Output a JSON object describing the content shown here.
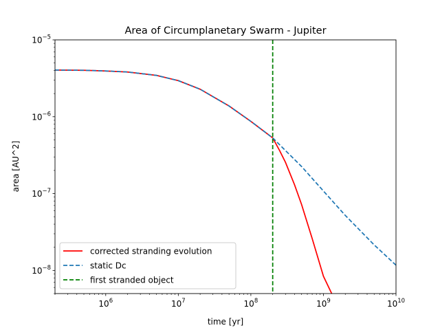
{
  "chart_data": {
    "type": "line",
    "title": "Area of Circumplanetary Swarm - Jupiter",
    "xlabel": "time [yr]",
    "ylabel": "area [AU^2]",
    "xscale": "log",
    "yscale": "log",
    "xlim": [
      200000,
      10000000000
    ],
    "ylim": [
      5e-09,
      1e-05
    ],
    "x_ticks": [
      {
        "value": 1000000,
        "base": "10",
        "exp": "6"
      },
      {
        "value": 10000000,
        "base": "10",
        "exp": "7"
      },
      {
        "value": 100000000,
        "base": "10",
        "exp": "8"
      },
      {
        "value": 1000000000,
        "base": "10",
        "exp": "9"
      },
      {
        "value": 10000000000,
        "base": "10",
        "exp": "10"
      }
    ],
    "y_ticks": [
      {
        "value": 1e-05,
        "base": "10",
        "exp": "−5"
      },
      {
        "value": 1e-06,
        "base": "10",
        "exp": "−6"
      },
      {
        "value": 1e-07,
        "base": "10",
        "exp": "−7"
      },
      {
        "value": 1e-08,
        "base": "10",
        "exp": "−8"
      }
    ],
    "grid": false,
    "legend_position": "lower-left",
    "series": [
      {
        "name": "corrected stranding evolution",
        "color": "#ff0000",
        "style": "solid",
        "x": [
          200000,
          500000,
          1000000,
          2000000,
          5000000,
          10000000,
          20000000,
          50000000,
          100000000,
          200000000,
          250000000,
          300000000,
          400000000,
          500000000,
          700000000,
          1000000000,
          1300000000
        ],
        "y": [
          4.05e-06,
          4.02e-06,
          3.94e-06,
          3.82e-06,
          3.45e-06,
          2.95e-06,
          2.28e-06,
          1.38e-06,
          8.7e-07,
          5.3e-07,
          3.6e-07,
          2.55e-07,
          1.3e-07,
          7.2e-08,
          2.6e-08,
          8.4e-09,
          5e-09
        ]
      },
      {
        "name": "static Dc",
        "color": "#1f77b4",
        "style": "dashed",
        "x": [
          200000,
          500000,
          1000000,
          2000000,
          5000000,
          10000000,
          20000000,
          50000000,
          100000000,
          200000000,
          500000000,
          1000000000,
          2000000000,
          5000000000,
          10000000000
        ],
        "y": [
          4.05e-06,
          4.02e-06,
          3.94e-06,
          3.82e-06,
          3.45e-06,
          2.95e-06,
          2.28e-06,
          1.38e-06,
          8.7e-07,
          5.3e-07,
          2.25e-07,
          1.08e-07,
          5.2e-08,
          2.15e-08,
          1.17e-08
        ]
      },
      {
        "name": "first stranded object",
        "color": "#008000",
        "style": "dashed",
        "vline_x": 200000000
      }
    ]
  }
}
